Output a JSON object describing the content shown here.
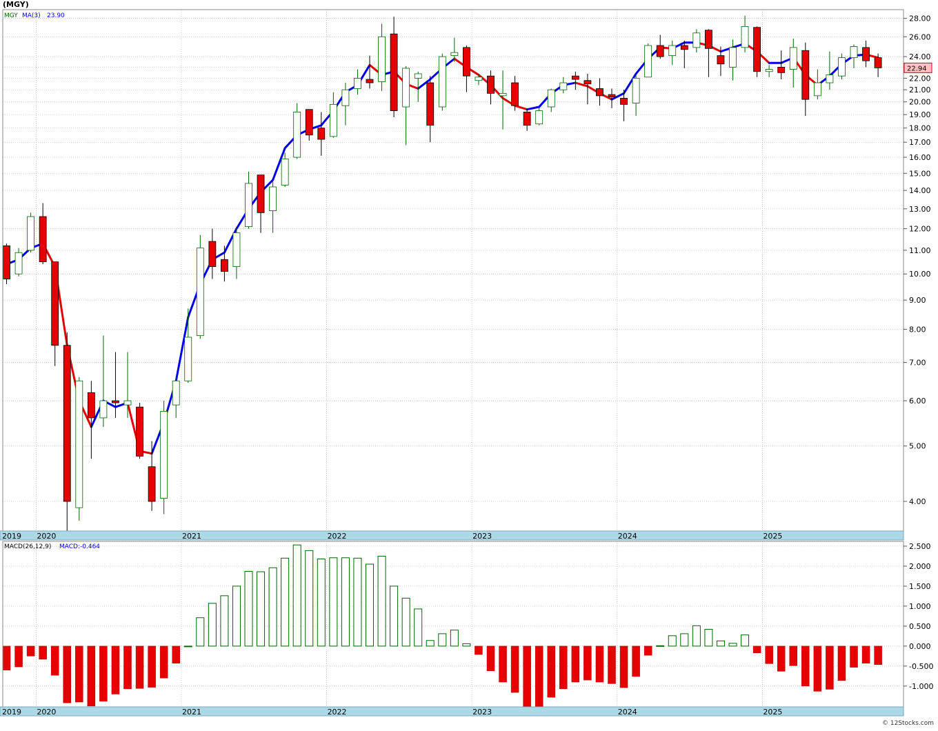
{
  "header": {
    "symbol_title": "(MGY)",
    "legend_symbol": "MGY",
    "legend_ma_label": "MA(3)",
    "legend_ma_value": "23.90",
    "macd_label": "MACD(26,12,9)",
    "macd_value_label": "MACD:-0.464",
    "last_price_tag": "22.94",
    "footer_credit": "© 12Stocks.com"
  },
  "colors": {
    "up_candle_fill": "#ffffff",
    "up_candle_stroke": "#006400",
    "down_candle_fill": "#e60000",
    "ma_rising": "#0000e6",
    "ma_falling": "#e60000",
    "grid": "#b4b4b4",
    "year_band": "#add8e6",
    "price_tag_bg": "#ffc0c0",
    "macd_pos_stroke": "#006400",
    "macd_neg_fill": "#e60000"
  },
  "chart_data": [
    {
      "type": "candlestick",
      "title": "(MGY)",
      "scale": "log",
      "ylim": [
        3.55,
        29
      ],
      "yticks": [
        4,
        5,
        6,
        7,
        8,
        9,
        10,
        11,
        12,
        13,
        14,
        15,
        16,
        17,
        18,
        19,
        20,
        21,
        22,
        23,
        24,
        26,
        28
      ],
      "ytick_labels": [
        "4.00",
        "5.00",
        "6.00",
        "7.00",
        "8.00",
        "9.00",
        "10.00",
        "11.00",
        "12.00",
        "13.00",
        "14.00",
        "15.00",
        "16.00",
        "17.00",
        "18.00",
        "19.00",
        "20.00",
        "21.00",
        "22.00",
        "23.00",
        "24.00",
        "26.00",
        "28.00"
      ],
      "x_labels": [
        "2019",
        "2020",
        "2021",
        "2022",
        "2023",
        "2024",
        "2025"
      ],
      "x_label_month_index": [
        0,
        3,
        15,
        27,
        39,
        51,
        63
      ],
      "grid": true,
      "candles": [
        {
          "o": 11.2,
          "h": 11.3,
          "l": 9.6,
          "c": 9.8
        },
        {
          "o": 10.0,
          "h": 11.1,
          "l": 9.9,
          "c": 10.9
        },
        {
          "o": 11.0,
          "h": 12.8,
          "l": 10.9,
          "c": 12.6
        },
        {
          "o": 12.6,
          "h": 13.3,
          "l": 10.4,
          "c": 10.5
        },
        {
          "o": 10.5,
          "h": 10.5,
          "l": 6.9,
          "c": 7.5
        },
        {
          "o": 7.5,
          "h": 7.9,
          "l": 3.55,
          "c": 4.0
        },
        {
          "o": 3.9,
          "h": 6.6,
          "l": 3.7,
          "c": 6.5
        },
        {
          "o": 6.2,
          "h": 6.5,
          "l": 4.75,
          "c": 5.6
        },
        {
          "o": 5.6,
          "h": 7.8,
          "l": 5.4,
          "c": 6.0
        },
        {
          "o": 6.0,
          "h": 7.3,
          "l": 5.6,
          "c": 5.95
        },
        {
          "o": 5.9,
          "h": 7.3,
          "l": 5.6,
          "c": 6.0
        },
        {
          "o": 5.85,
          "h": 5.95,
          "l": 4.75,
          "c": 4.8
        },
        {
          "o": 4.6,
          "h": 5.1,
          "l": 3.85,
          "c": 4.0
        },
        {
          "o": 4.05,
          "h": 6.0,
          "l": 3.8,
          "c": 5.75
        },
        {
          "o": 5.9,
          "h": 6.6,
          "l": 5.6,
          "c": 6.5
        },
        {
          "o": 6.5,
          "h": 8.7,
          "l": 6.45,
          "c": 7.75
        },
        {
          "o": 7.8,
          "h": 11.7,
          "l": 7.7,
          "c": 11.1
        },
        {
          "o": 11.4,
          "h": 12.0,
          "l": 9.8,
          "c": 10.3
        },
        {
          "o": 10.6,
          "h": 11.2,
          "l": 9.7,
          "c": 10.1
        },
        {
          "o": 10.3,
          "h": 12.0,
          "l": 9.8,
          "c": 11.8
        },
        {
          "o": 12.1,
          "h": 15.1,
          "l": 12.0,
          "c": 14.4
        },
        {
          "o": 14.9,
          "h": 14.9,
          "l": 11.8,
          "c": 12.8
        },
        {
          "o": 12.9,
          "h": 14.5,
          "l": 11.8,
          "c": 14.2
        },
        {
          "o": 14.3,
          "h": 16.3,
          "l": 14.2,
          "c": 15.9
        },
        {
          "o": 16.0,
          "h": 19.9,
          "l": 15.9,
          "c": 19.2
        },
        {
          "o": 19.4,
          "h": 19.4,
          "l": 17.1,
          "c": 17.5
        },
        {
          "o": 18.0,
          "h": 19.2,
          "l": 16.1,
          "c": 17.2
        },
        {
          "o": 17.4,
          "h": 20.8,
          "l": 17.3,
          "c": 19.8
        },
        {
          "o": 19.7,
          "h": 21.6,
          "l": 18.2,
          "c": 21.0
        },
        {
          "o": 21.1,
          "h": 22.8,
          "l": 20.6,
          "c": 22.0
        },
        {
          "o": 21.9,
          "h": 24.1,
          "l": 21.1,
          "c": 21.6
        },
        {
          "o": 21.7,
          "h": 27.4,
          "l": 20.9,
          "c": 26.0
        },
        {
          "o": 26.3,
          "h": 28.2,
          "l": 18.8,
          "c": 19.3
        },
        {
          "o": 19.6,
          "h": 23.1,
          "l": 16.8,
          "c": 22.9
        },
        {
          "o": 22.0,
          "h": 22.6,
          "l": 20.0,
          "c": 22.4
        },
        {
          "o": 21.6,
          "h": 22.2,
          "l": 17.0,
          "c": 18.2
        },
        {
          "o": 19.6,
          "h": 24.3,
          "l": 19.3,
          "c": 24.0
        },
        {
          "o": 24.1,
          "h": 25.9,
          "l": 23.5,
          "c": 24.4
        },
        {
          "o": 24.9,
          "h": 25.1,
          "l": 20.8,
          "c": 22.2
        },
        {
          "o": 21.8,
          "h": 22.4,
          "l": 21.4,
          "c": 22.1
        },
        {
          "o": 22.2,
          "h": 22.7,
          "l": 19.8,
          "c": 20.7
        },
        {
          "o": 20.5,
          "h": 22.7,
          "l": 17.9,
          "c": 20.7
        },
        {
          "o": 21.6,
          "h": 22.2,
          "l": 19.3,
          "c": 19.7
        },
        {
          "o": 19.2,
          "h": 19.4,
          "l": 17.8,
          "c": 18.2
        },
        {
          "o": 18.3,
          "h": 19.6,
          "l": 18.2,
          "c": 19.3
        },
        {
          "o": 19.6,
          "h": 21.1,
          "l": 19.2,
          "c": 21.0
        },
        {
          "o": 21.0,
          "h": 22.1,
          "l": 20.7,
          "c": 21.6
        },
        {
          "o": 22.2,
          "h": 22.6,
          "l": 21.0,
          "c": 21.9
        },
        {
          "o": 21.8,
          "h": 22.4,
          "l": 19.8,
          "c": 21.5
        },
        {
          "o": 21.1,
          "h": 22.0,
          "l": 19.7,
          "c": 20.5
        },
        {
          "o": 20.6,
          "h": 21.1,
          "l": 19.5,
          "c": 20.4
        },
        {
          "o": 20.3,
          "h": 21.0,
          "l": 18.5,
          "c": 19.8
        },
        {
          "o": 19.9,
          "h": 22.3,
          "l": 18.9,
          "c": 22.0
        },
        {
          "o": 22.1,
          "h": 25.3,
          "l": 22.1,
          "c": 25.1
        },
        {
          "o": 25.1,
          "h": 26.2,
          "l": 23.8,
          "c": 24.0
        },
        {
          "o": 24.1,
          "h": 25.6,
          "l": 23.2,
          "c": 25.1
        },
        {
          "o": 25.1,
          "h": 25.6,
          "l": 22.9,
          "c": 24.7
        },
        {
          "o": 24.9,
          "h": 26.8,
          "l": 24.4,
          "c": 26.4
        },
        {
          "o": 26.7,
          "h": 26.8,
          "l": 22.1,
          "c": 24.8
        },
        {
          "o": 24.1,
          "h": 25.0,
          "l": 22.2,
          "c": 23.3
        },
        {
          "o": 23.0,
          "h": 25.7,
          "l": 21.8,
          "c": 24.9
        },
        {
          "o": 24.9,
          "h": 28.3,
          "l": 24.4,
          "c": 27.1
        },
        {
          "o": 27.0,
          "h": 27.1,
          "l": 22.1,
          "c": 22.6
        },
        {
          "o": 22.6,
          "h": 23.2,
          "l": 22.1,
          "c": 22.8
        },
        {
          "o": 23.0,
          "h": 24.6,
          "l": 21.9,
          "c": 22.5
        },
        {
          "o": 22.8,
          "h": 25.8,
          "l": 21.2,
          "c": 24.9
        },
        {
          "o": 24.6,
          "h": 25.4,
          "l": 18.9,
          "c": 20.2
        },
        {
          "o": 20.5,
          "h": 22.8,
          "l": 20.2,
          "c": 21.6
        },
        {
          "o": 21.6,
          "h": 24.5,
          "l": 21.0,
          "c": 22.3
        },
        {
          "o": 22.2,
          "h": 24.3,
          "l": 21.9,
          "c": 23.9
        },
        {
          "o": 23.9,
          "h": 25.2,
          "l": 22.9,
          "c": 25.0
        },
        {
          "o": 24.9,
          "h": 25.6,
          "l": 23.0,
          "c": 23.6
        },
        {
          "o": 23.9,
          "h": 24.3,
          "l": 22.1,
          "c": 22.94
        }
      ],
      "ma3": [
        10.4,
        10.6,
        11.1,
        11.3,
        10.3,
        7.5,
        6.0,
        5.4,
        6.0,
        5.85,
        5.95,
        4.9,
        4.85,
        5.5,
        6.5,
        8.4,
        9.6,
        10.6,
        10.9,
        12.0,
        13.0,
        13.9,
        14.6,
        16.6,
        17.5,
        17.9,
        18.2,
        19.3,
        20.8,
        21.4,
        23.2,
        22.3,
        22.6,
        21.5,
        21.1,
        21.9,
        22.9,
        23.8,
        23.0,
        22.3,
        21.4,
        20.3,
        19.7,
        19.4,
        19.6,
        20.7,
        21.4,
        21.6,
        21.3,
        20.7,
        20.2,
        20.7,
        22.4,
        23.8,
        24.9,
        24.8,
        25.4,
        25.4,
        25.1,
        24.5,
        24.9,
        25.3,
        24.5,
        23.4,
        23.4,
        23.9,
        22.3,
        21.4,
        22.2,
        23.3,
        24.1,
        24.2,
        23.9
      ],
      "ma_direction": [
        "u",
        "u",
        "u",
        "u",
        "d",
        "d",
        "d",
        "d",
        "u",
        "u",
        "u",
        "d",
        "d",
        "u",
        "u",
        "u",
        "u",
        "u",
        "u",
        "u",
        "u",
        "u",
        "u",
        "u",
        "u",
        "u",
        "u",
        "u",
        "u",
        "u",
        "u",
        "d",
        "u",
        "d",
        "d",
        "u",
        "u",
        "u",
        "d",
        "d",
        "d",
        "d",
        "d",
        "d",
        "u",
        "u",
        "u",
        "u",
        "d",
        "d",
        "d",
        "u",
        "u",
        "u",
        "u",
        "d",
        "u",
        "u",
        "d",
        "d",
        "u",
        "u",
        "d",
        "d",
        "u",
        "u",
        "d",
        "d",
        "u",
        "u",
        "u",
        "u",
        "d"
      ]
    },
    {
      "type": "bar",
      "title": "MACD(26,12,9)",
      "ylim": [
        -1.52,
        2.62
      ],
      "yticks": [
        2.5,
        2.0,
        1.5,
        1.0,
        0.5,
        0.0,
        -0.5,
        -1.0
      ],
      "ytick_labels": [
        "2.500",
        "2.000",
        "1.500",
        "1.000",
        "0.500",
        "0.000",
        "-0.500",
        "-1.000"
      ],
      "x_labels": [
        "2019",
        "2020",
        "2021",
        "2022",
        "2023",
        "2024",
        "2025"
      ],
      "values": [
        -0.6,
        -0.52,
        -0.25,
        -0.33,
        -0.73,
        -1.42,
        -1.4,
        -1.5,
        -1.38,
        -1.2,
        -1.07,
        -1.06,
        -1.03,
        -0.8,
        -0.43,
        0.0,
        0.71,
        1.07,
        1.26,
        1.5,
        1.87,
        1.86,
        1.96,
        2.2,
        2.53,
        2.39,
        2.18,
        2.21,
        2.21,
        2.2,
        2.05,
        2.25,
        1.5,
        1.2,
        0.93,
        0.14,
        0.31,
        0.4,
        0.06,
        -0.21,
        -0.62,
        -0.9,
        -1.16,
        -1.51,
        -1.52,
        -1.28,
        -1.07,
        -0.9,
        -0.85,
        -0.9,
        -0.94,
        -1.04,
        -0.76,
        -0.23,
        0.01,
        0.26,
        0.31,
        0.51,
        0.42,
        0.13,
        0.07,
        0.28,
        -0.17,
        -0.44,
        -0.63,
        -0.49,
        -1.0,
        -1.13,
        -1.08,
        -0.86,
        -0.53,
        -0.43,
        -0.464
      ]
    }
  ]
}
